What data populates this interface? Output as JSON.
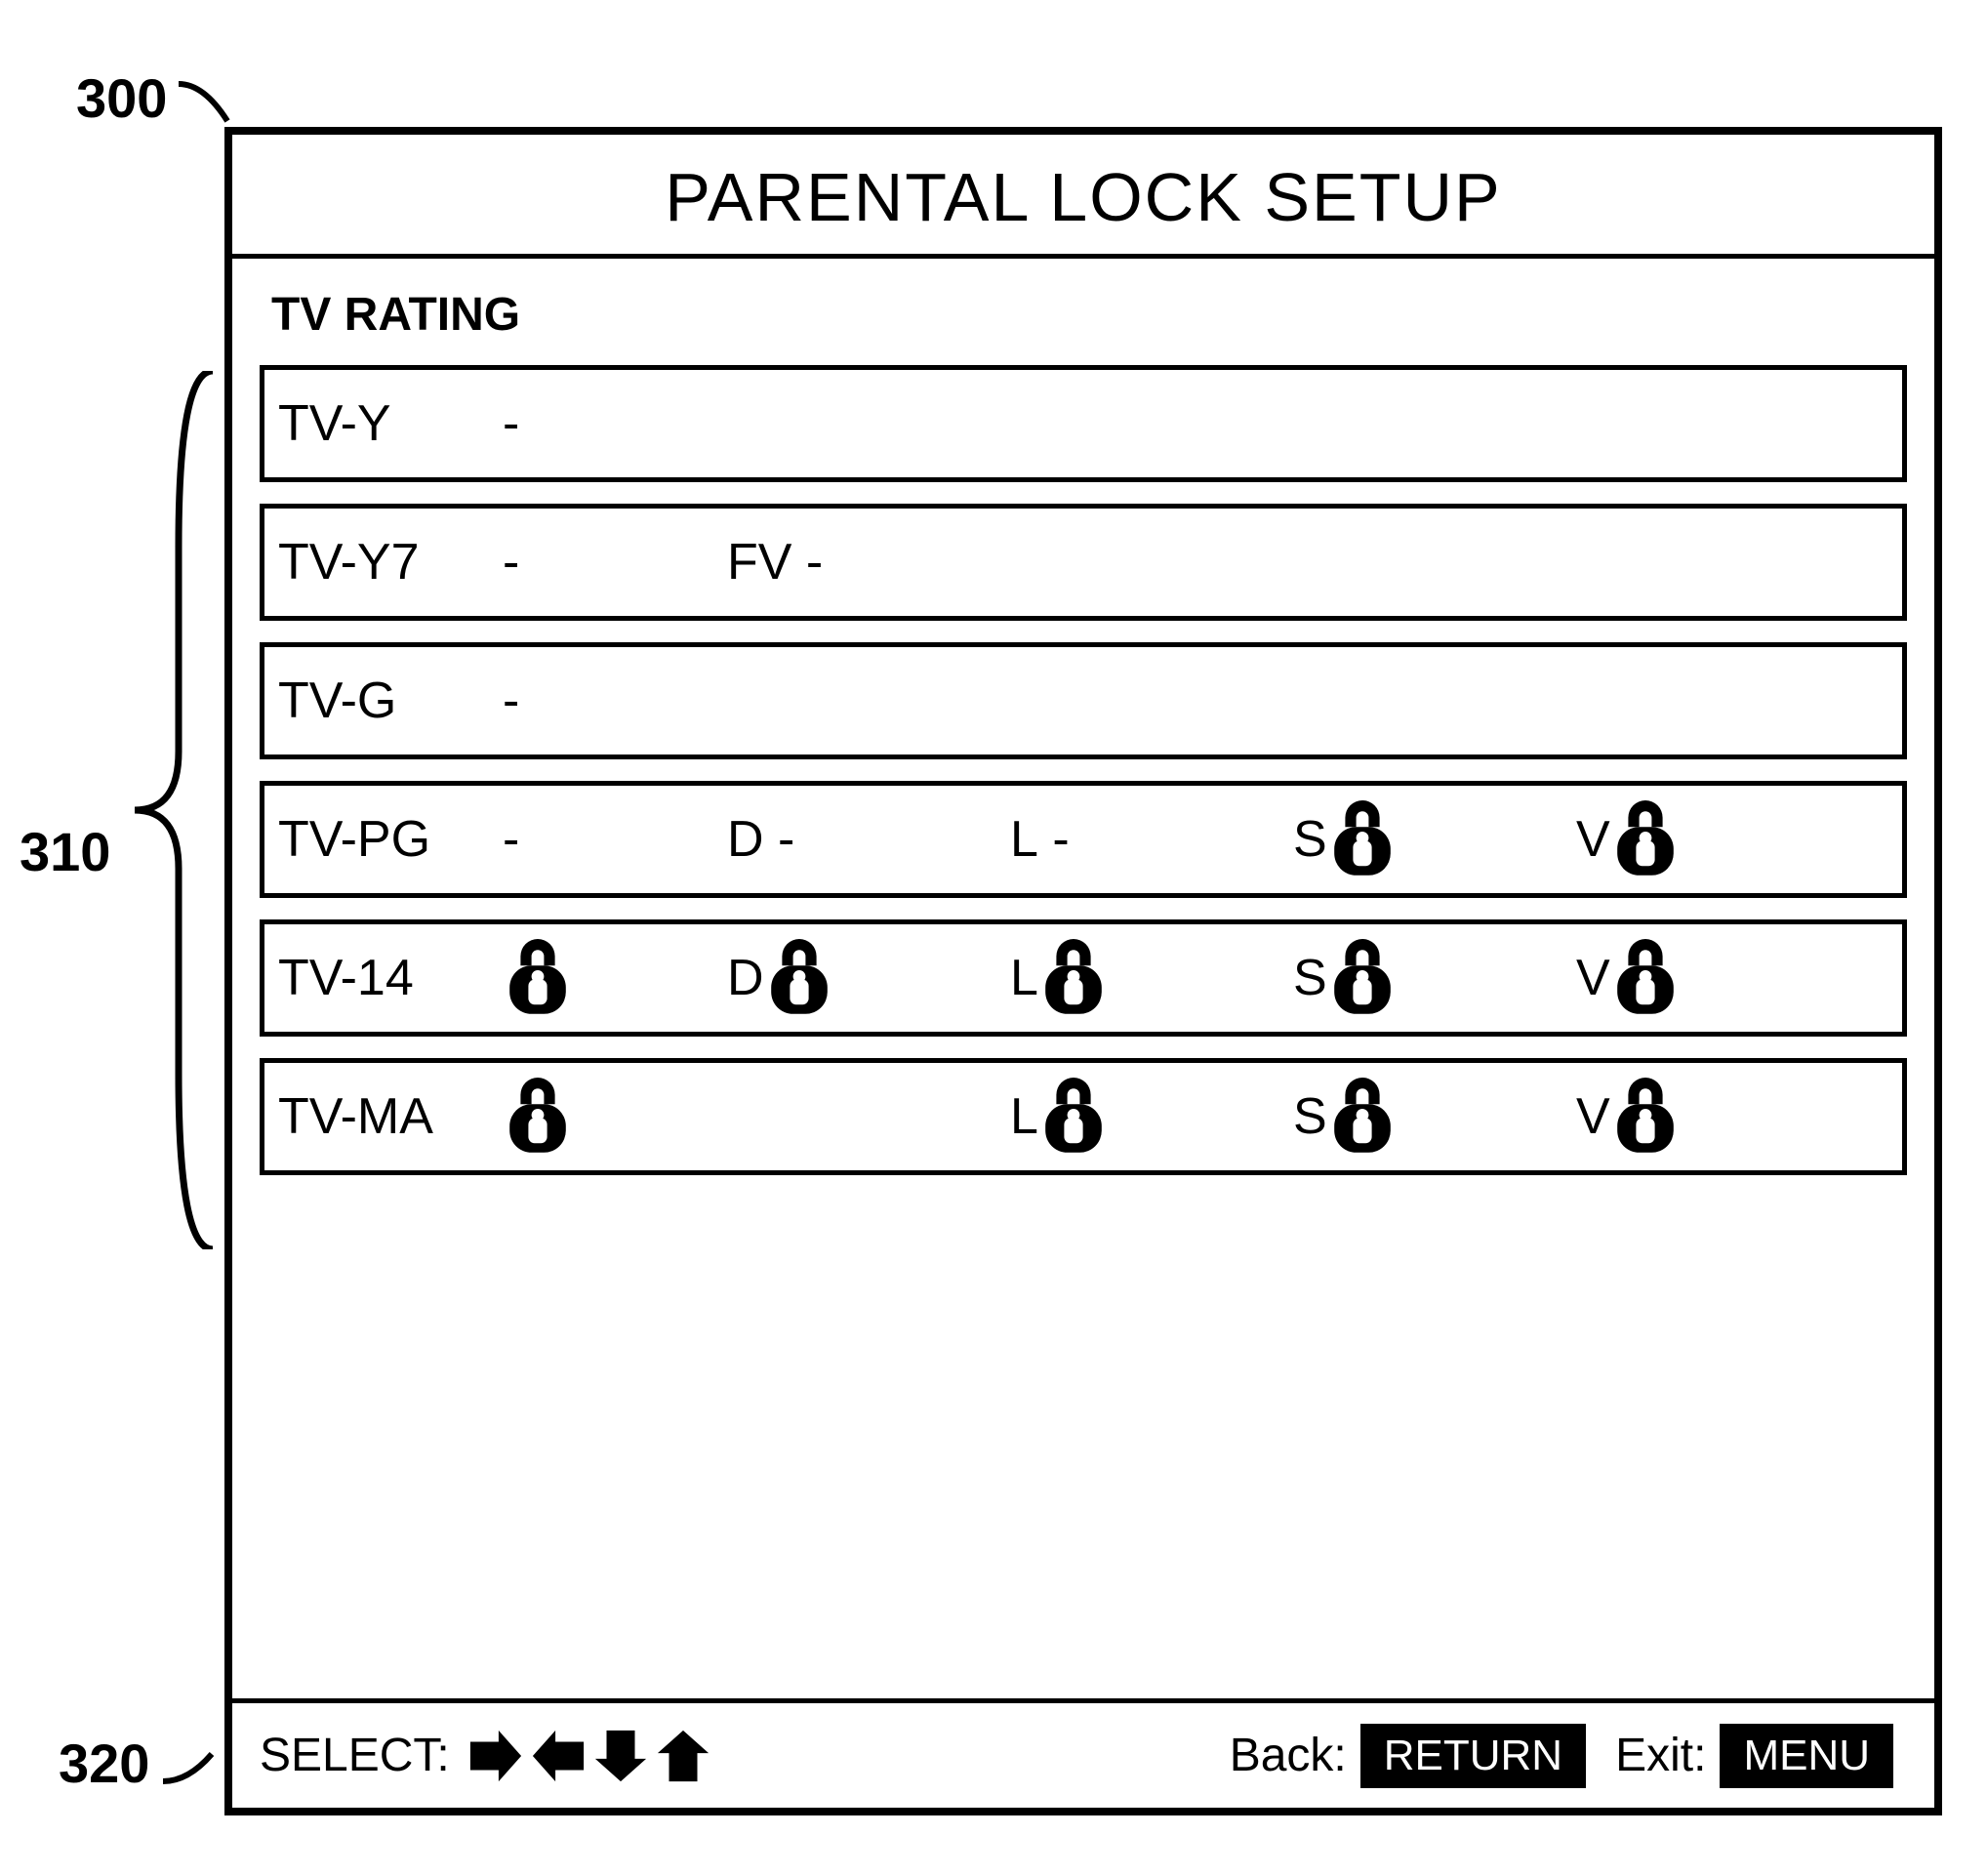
{
  "callouts": {
    "c300": "300",
    "c310": "310",
    "c320": "320"
  },
  "title": "PARENTAL LOCK SETUP",
  "section_label": "TV RATING",
  "dash": "-",
  "ratings": [
    {
      "name": "TV-Y",
      "main": "dash",
      "subs": []
    },
    {
      "name": "TV-Y7",
      "main": "dash",
      "subs": [
        {
          "k": "FV",
          "v": "dash"
        }
      ]
    },
    {
      "name": "TV-G",
      "main": "dash",
      "subs": []
    },
    {
      "name": "TV-PG",
      "main": "dash",
      "subs": [
        {
          "k": "D",
          "v": "dash"
        },
        {
          "k": "L",
          "v": "dash"
        },
        {
          "k": "S",
          "v": "lock"
        },
        {
          "k": "V",
          "v": "lock"
        }
      ]
    },
    {
      "name": "TV-14",
      "main": "lock",
      "subs": [
        {
          "k": "D",
          "v": "lock"
        },
        {
          "k": "L",
          "v": "lock"
        },
        {
          "k": "S",
          "v": "lock"
        },
        {
          "k": "V",
          "v": "lock"
        }
      ]
    },
    {
      "name": "TV-MA",
      "main": "lock",
      "subs": [
        {
          "k": "D",
          "v": "none"
        },
        {
          "k": "L",
          "v": "lock"
        },
        {
          "k": "S",
          "v": "lock"
        },
        {
          "k": "V",
          "v": "lock"
        }
      ]
    }
  ],
  "footer": {
    "select_label": "SELECT:",
    "back_label": "Back:",
    "return_btn": "RETURN",
    "exit_label": "Exit:",
    "menu_btn": "MENU"
  }
}
